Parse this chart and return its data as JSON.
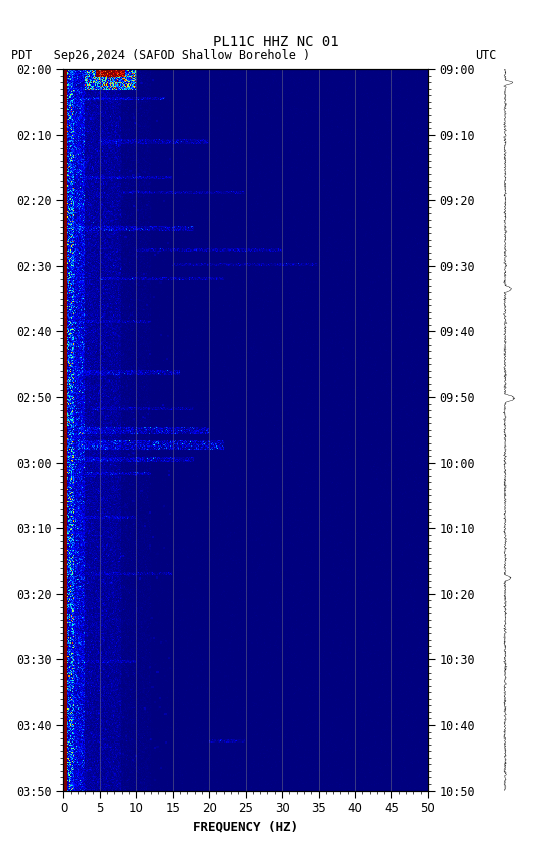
{
  "title_line1": "PL11C HHZ NC 01",
  "title_line2_left": "PDT   Sep26,2024      (SAFOD Shallow Borehole )",
  "title_line2_right": "UTC",
  "xlabel": "FREQUENCY (HZ)",
  "freq_min": 0,
  "freq_max": 50,
  "left_yticks": [
    "02:00",
    "02:10",
    "02:20",
    "02:30",
    "02:40",
    "02:50",
    "03:00",
    "03:10",
    "03:20",
    "03:30",
    "03:40",
    "03:50"
  ],
  "right_yticks": [
    "09:00",
    "09:10",
    "09:20",
    "09:30",
    "09:40",
    "09:50",
    "10:00",
    "10:10",
    "10:20",
    "10:30",
    "10:40",
    "10:50"
  ],
  "fig_width": 5.52,
  "fig_height": 8.64,
  "dpi": 100,
  "colormap": "jet",
  "seed": 42,
  "vmin_pct": 0,
  "vmax_pct": 99
}
